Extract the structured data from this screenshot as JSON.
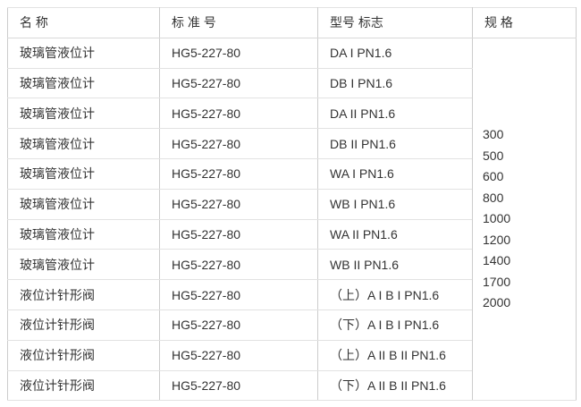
{
  "table": {
    "columns": [
      {
        "key": "name",
        "label": "名 称"
      },
      {
        "key": "standard",
        "label": "标 准 号"
      },
      {
        "key": "model",
        "label": "型号 标志"
      },
      {
        "key": "spec",
        "label": "规 格"
      }
    ],
    "rows": [
      {
        "name": "玻璃管液位计",
        "standard": "HG5-227-80",
        "model": "DA I PN1.6"
      },
      {
        "name": "玻璃管液位计",
        "standard": "HG5-227-80",
        "model": "DB I PN1.6"
      },
      {
        "name": "玻璃管液位计",
        "standard": "HG5-227-80",
        "model": "DA II PN1.6"
      },
      {
        "name": "玻璃管液位计",
        "standard": "HG5-227-80",
        "model": "DB II PN1.6"
      },
      {
        "name": "玻璃管液位计",
        "standard": "HG5-227-80",
        "model": "WA I PN1.6"
      },
      {
        "name": "玻璃管液位计",
        "standard": "HG5-227-80",
        "model": "WB I PN1.6"
      },
      {
        "name": "玻璃管液位计",
        "standard": "HG5-227-80",
        "model": "WA II PN1.6"
      },
      {
        "name": "玻璃管液位计",
        "standard": "HG5-227-80",
        "model": "WB II PN1.6"
      },
      {
        "name": "液位计针形阀",
        "standard": "HG5-227-80",
        "model": "（上）A I B I PN1.6"
      },
      {
        "name": "液位计针形阀",
        "standard": "HG5-227-80",
        "model": "（下）A I B I PN1.6"
      },
      {
        "name": "液位计针形阀",
        "standard": "HG5-227-80",
        "model": "（上）A II B II PN1.6"
      },
      {
        "name": "液位计针形阀",
        "standard": "HG5-227-80",
        "model": "（下）A II B II PN1.6"
      }
    ],
    "specs": [
      "300",
      "500",
      "600",
      "800",
      "1000",
      "1200",
      "1400",
      "1700",
      "2000"
    ]
  },
  "colors": {
    "text": "#333333",
    "border_vertical": "#cccccc",
    "border_horizontal": "#e2e2e2",
    "background": "#ffffff"
  }
}
